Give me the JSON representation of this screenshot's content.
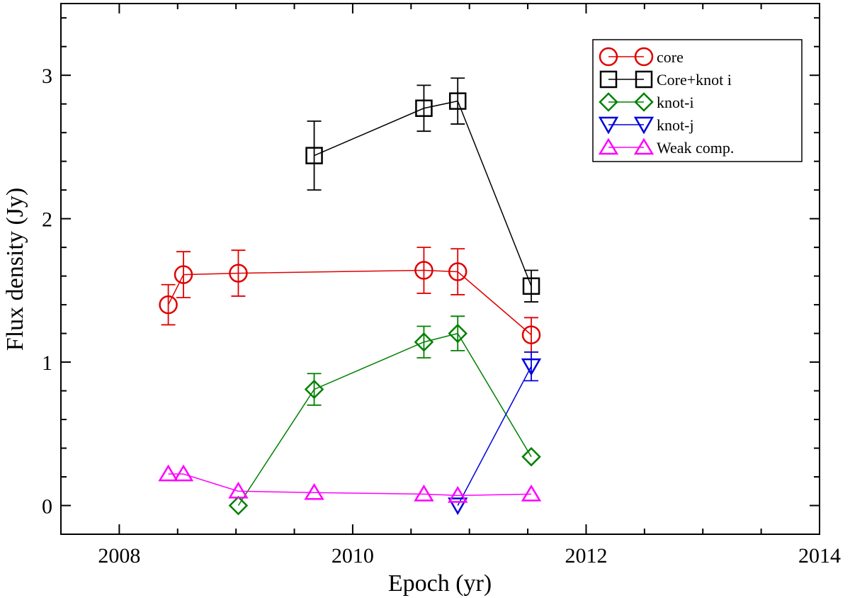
{
  "chart_data": {
    "type": "scatter",
    "xlabel": "Epoch (yr)",
    "ylabel": "Flux density (Jy)",
    "xlim": [
      2007.5,
      2014
    ],
    "ylim": [
      -0.2,
      3.5
    ],
    "xticks": [
      2008,
      2010,
      2012,
      2014
    ],
    "yticks": [
      0,
      1,
      2,
      3
    ],
    "legend_position": "top-right",
    "series": [
      {
        "name": "core",
        "color": "#e00000",
        "marker": "circle",
        "points": [
          {
            "x": 2008.42,
            "y": 1.4,
            "err": 0.14
          },
          {
            "x": 2008.55,
            "y": 1.61,
            "err": 0.16
          },
          {
            "x": 2009.02,
            "y": 1.62,
            "err": 0.16
          },
          {
            "x": 2010.61,
            "y": 1.64,
            "err": 0.16
          },
          {
            "x": 2010.9,
            "y": 1.63,
            "err": 0.16
          },
          {
            "x": 2011.53,
            "y": 1.19,
            "err": 0.12
          }
        ]
      },
      {
        "name": "Core+knot i",
        "color": "#000000",
        "marker": "square",
        "points": [
          {
            "x": 2009.67,
            "y": 2.44,
            "err": 0.24
          },
          {
            "x": 2010.61,
            "y": 2.77,
            "err": 0.16
          },
          {
            "x": 2010.9,
            "y": 2.82,
            "err": 0.16
          },
          {
            "x": 2011.53,
            "y": 1.53,
            "err": 0.11
          }
        ]
      },
      {
        "name": "knot-i",
        "color": "#008000",
        "marker": "diamond",
        "points": [
          {
            "x": 2009.02,
            "y": 0.0,
            "err": null
          },
          {
            "x": 2009.67,
            "y": 0.81,
            "err": 0.11
          },
          {
            "x": 2010.61,
            "y": 1.14,
            "err": 0.11
          },
          {
            "x": 2010.9,
            "y": 1.2,
            "err": 0.12
          },
          {
            "x": 2011.53,
            "y": 0.34,
            "err": null
          }
        ]
      },
      {
        "name": "knot-j",
        "color": "#0000dd",
        "marker": "triangle-down",
        "points": [
          {
            "x": 2010.9,
            "y": 0.0,
            "err": null
          },
          {
            "x": 2011.53,
            "y": 0.97,
            "err": 0.1
          }
        ]
      },
      {
        "name": "Weak comp.",
        "color": "#ff00ff",
        "marker": "triangle-up",
        "points": [
          {
            "x": 2008.42,
            "y": 0.22,
            "err": null
          },
          {
            "x": 2008.55,
            "y": 0.22,
            "err": null
          },
          {
            "x": 2009.02,
            "y": 0.1,
            "err": null
          },
          {
            "x": 2009.67,
            "y": 0.09,
            "err": null
          },
          {
            "x": 2010.61,
            "y": 0.08,
            "err": null
          },
          {
            "x": 2010.9,
            "y": 0.07,
            "err": null
          },
          {
            "x": 2011.53,
            "y": 0.08,
            "err": null
          }
        ]
      }
    ]
  }
}
